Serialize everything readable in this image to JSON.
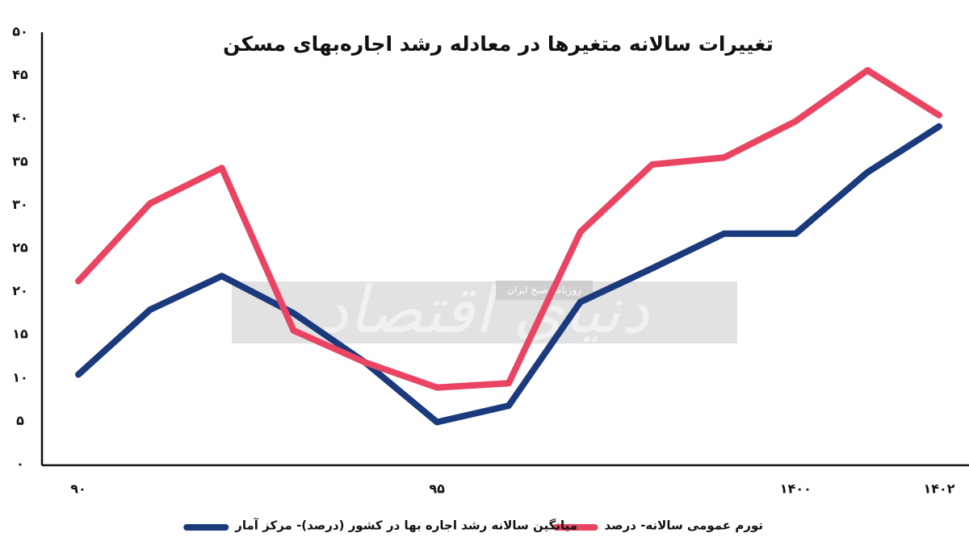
{
  "chart_data": {
    "type": "line",
    "title": "تغییرات سالانه متغیرها در معادله رشد اجاره‌بهای مسکن",
    "watermark": [
      "دنیای اقتصاد",
      "روزنامه صبح ایران"
    ],
    "categories": [
      "۹۰",
      null,
      null,
      null,
      null,
      "۹۵",
      null,
      null,
      null,
      null,
      "۱۴۰۰",
      null,
      "۱۴۰۲"
    ],
    "series": [
      {
        "name": "میانگین سالانه رشد اجاره بها در کشور (درصد)- مرکز آمار",
        "color": "#1a3a7d",
        "values": [
          10.4,
          17.9,
          21.8,
          17.5,
          11.8,
          4.9,
          6.8,
          18.8,
          22.7,
          26.7,
          26.7,
          33.8,
          39.1
        ]
      },
      {
        "name": "تورم عمومی سالانه- درصد",
        "color": "#ea4463",
        "values": [
          21.2,
          30.2,
          34.3,
          15.5,
          11.8,
          8.9,
          9.4,
          26.9,
          34.7,
          35.5,
          39.7,
          45.6,
          40.4
        ]
      }
    ],
    "ylim": [
      0,
      50
    ],
    "yticks": [
      {
        "value": 0,
        "label": "۰"
      },
      {
        "value": 5,
        "label": "۵"
      },
      {
        "value": 10,
        "label": "۱۰"
      },
      {
        "value": 15,
        "label": "۱۵"
      },
      {
        "value": 20,
        "label": "۲۰"
      },
      {
        "value": 25,
        "label": "۲۵"
      },
      {
        "value": 30,
        "label": "۳۰"
      },
      {
        "value": 35,
        "label": "۳۵"
      },
      {
        "value": 40,
        "label": "۴۰"
      },
      {
        "value": 45,
        "label": "۴۵"
      },
      {
        "value": 50,
        "label": "۵۰"
      }
    ]
  }
}
